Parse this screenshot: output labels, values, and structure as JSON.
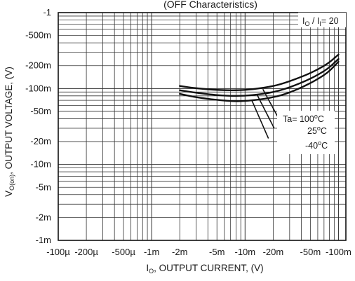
{
  "chart_data": {
    "type": "line",
    "title": "(OFF Characteristics)",
    "xlabel": {
      "main": "I",
      "sub": "O",
      "rest": ", OUTPUT CURRENT, (V)"
    },
    "ylabel": {
      "main": "V",
      "sub": "O(on)",
      "rest": ", OUTPUT VOLTAGE, (V)"
    },
    "x_scale": "log",
    "y_scale": "log",
    "x_ticks": [
      {
        "value": 0.0001,
        "label": "-100µ"
      },
      {
        "value": 0.0002,
        "label": "-200µ"
      },
      {
        "value": 0.0005,
        "label": "-500µ"
      },
      {
        "value": 0.001,
        "label": "-1m"
      },
      {
        "value": 0.002,
        "label": "-2m"
      },
      {
        "value": 0.005,
        "label": "-5m"
      },
      {
        "value": 0.01,
        "label": "-10m"
      },
      {
        "value": 0.02,
        "label": "-20m"
      },
      {
        "value": 0.05,
        "label": "-50m"
      },
      {
        "value": 0.1,
        "label": "-100m"
      }
    ],
    "y_ticks": [
      {
        "value": 0.001,
        "label": "-1m"
      },
      {
        "value": 0.002,
        "label": "-2m"
      },
      {
        "value": 0.005,
        "label": "-5m"
      },
      {
        "value": 0.01,
        "label": "-10m"
      },
      {
        "value": 0.02,
        "label": "-20m"
      },
      {
        "value": 0.05,
        "label": "-50m"
      },
      {
        "value": 0.1,
        "label": "-100m"
      },
      {
        "value": 0.2,
        "label": "-200m"
      },
      {
        "value": 0.5,
        "label": "-500m"
      },
      {
        "value": 1,
        "label": "-1"
      }
    ],
    "xlim": [
      0.0001,
      0.12
    ],
    "ylim": [
      0.001,
      1
    ],
    "grid": true,
    "condition": {
      "main": "I",
      "sub1": "O",
      "mid": " / I",
      "sub2": "I",
      "rest": "= 20"
    },
    "legend": {
      "prefix": "Ta= ",
      "entries": [
        "100",
        "25",
        "-40"
      ],
      "degree": "o",
      "unit": "C"
    },
    "series": [
      {
        "x": [
          0.002,
          0.003,
          0.005,
          0.008,
          0.012,
          0.02,
          0.03,
          0.05,
          0.075,
          0.1
        ],
        "y": [
          0.108,
          0.101,
          0.096,
          0.095,
          0.098,
          0.108,
          0.125,
          0.16,
          0.21,
          0.28
        ]
      },
      {
        "x": [
          0.002,
          0.003,
          0.005,
          0.008,
          0.012,
          0.02,
          0.03,
          0.05,
          0.075,
          0.1
        ],
        "y": [
          0.095,
          0.088,
          0.082,
          0.08,
          0.082,
          0.09,
          0.104,
          0.135,
          0.18,
          0.245
        ]
      },
      {
        "x": [
          0.002,
          0.003,
          0.005,
          0.008,
          0.012,
          0.02,
          0.03,
          0.05,
          0.075,
          0.1
        ],
        "y": [
          0.085,
          0.077,
          0.071,
          0.068,
          0.07,
          0.077,
          0.089,
          0.118,
          0.16,
          0.225
        ]
      }
    ],
    "legend_leaders": [
      {
        "x": [
          0.0155,
          0.023
        ],
        "y": [
          0.098,
          0.04
        ]
      },
      {
        "x": [
          0.0135,
          0.0205
        ],
        "y": [
          0.082,
          0.03
        ]
      },
      {
        "x": [
          0.0118,
          0.0178
        ],
        "y": [
          0.07,
          0.022
        ]
      }
    ]
  }
}
